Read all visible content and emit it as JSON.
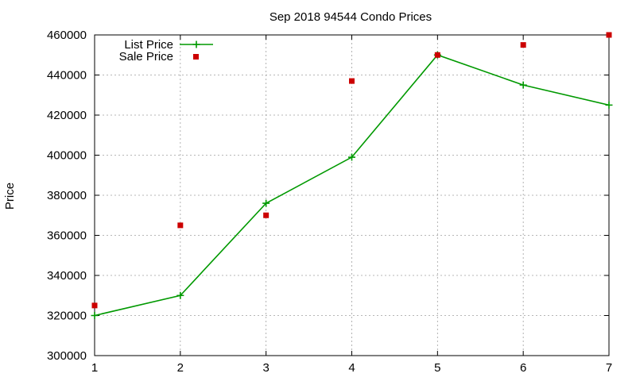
{
  "chart_data": {
    "type": "line",
    "title": "Sep 2018 94544 Condo Prices",
    "xlabel": "",
    "ylabel": "Price",
    "x": [
      1,
      2,
      3,
      4,
      5,
      6,
      7
    ],
    "xlim": [
      1,
      7
    ],
    "ylim": [
      300000,
      460000
    ],
    "yticks": [
      300000,
      320000,
      340000,
      360000,
      380000,
      400000,
      420000,
      440000,
      460000
    ],
    "xticks": [
      1,
      2,
      3,
      4,
      5,
      6,
      7
    ],
    "grid": true,
    "legend_position": "top-left",
    "series": [
      {
        "name": "List Price",
        "style": "line-with-plus-markers",
        "color": "#009900",
        "values": [
          320000,
          330000,
          376000,
          399000,
          450000,
          435000,
          425000
        ]
      },
      {
        "name": "Sale Price",
        "style": "square-markers",
        "color": "#cc0000",
        "values": [
          325000,
          365000,
          370000,
          437000,
          450000,
          455000,
          460000
        ]
      }
    ]
  }
}
